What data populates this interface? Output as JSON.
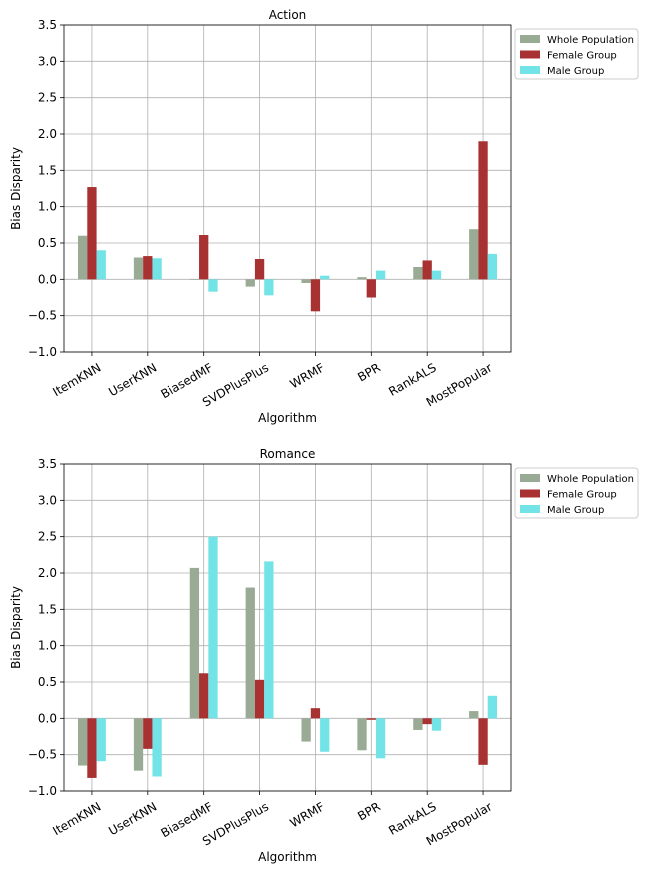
{
  "chart_data": [
    {
      "type": "bar",
      "title": "Action",
      "xlabel": "Algorithm",
      "ylabel": "Bias Disparity",
      "ylim": [
        -1.0,
        3.5
      ],
      "yticks": [
        "−1.0",
        "−0.5",
        "0.0",
        "0.5",
        "1.0",
        "1.5",
        "2.0",
        "2.5",
        "3.0",
        "3.5"
      ],
      "grid": true,
      "legend": "outside-top-right",
      "categories": [
        "ItemKNN",
        "UserKNN",
        "BiasedMF",
        "SVDPlusPlus",
        "WRMF",
        "BPR",
        "RankALS",
        "MostPopular"
      ],
      "series": [
        {
          "name": "Whole Population",
          "color": "#9aab95",
          "values": [
            0.6,
            0.3,
            0.0,
            -0.1,
            -0.05,
            0.03,
            0.17,
            0.69
          ]
        },
        {
          "name": "Female Group",
          "color": "#a83232",
          "values": [
            1.27,
            0.32,
            0.61,
            0.28,
            -0.44,
            -0.25,
            0.26,
            1.9
          ]
        },
        {
          "name": "Male Group",
          "color": "#72e3e6",
          "values": [
            0.4,
            0.29,
            -0.17,
            -0.22,
            0.05,
            0.12,
            0.12,
            0.35
          ]
        }
      ]
    },
    {
      "type": "bar",
      "title": "Romance",
      "xlabel": "Algorithm",
      "ylabel": "Bias Disparity",
      "ylim": [
        -1.0,
        3.5
      ],
      "yticks": [
        "−1.0",
        "−0.5",
        "0.0",
        "0.5",
        "1.0",
        "1.5",
        "2.0",
        "2.5",
        "3.0",
        "3.5"
      ],
      "grid": true,
      "legend": "outside-top-right",
      "categories": [
        "ItemKNN",
        "UserKNN",
        "BiasedMF",
        "SVDPlusPlus",
        "WRMF",
        "BPR",
        "RankALS",
        "MostPopular"
      ],
      "series": [
        {
          "name": "Whole Population",
          "color": "#9aab95",
          "values": [
            -0.65,
            -0.72,
            2.07,
            1.8,
            -0.32,
            -0.44,
            -0.16,
            0.1
          ]
        },
        {
          "name": "Female Group",
          "color": "#a83232",
          "values": [
            -0.82,
            -0.42,
            0.62,
            0.53,
            0.14,
            -0.02,
            -0.08,
            -0.64
          ]
        },
        {
          "name": "Male Group",
          "color": "#72e3e6",
          "values": [
            -0.59,
            -0.8,
            2.5,
            2.16,
            -0.46,
            -0.55,
            -0.17,
            0.31
          ]
        }
      ]
    }
  ]
}
